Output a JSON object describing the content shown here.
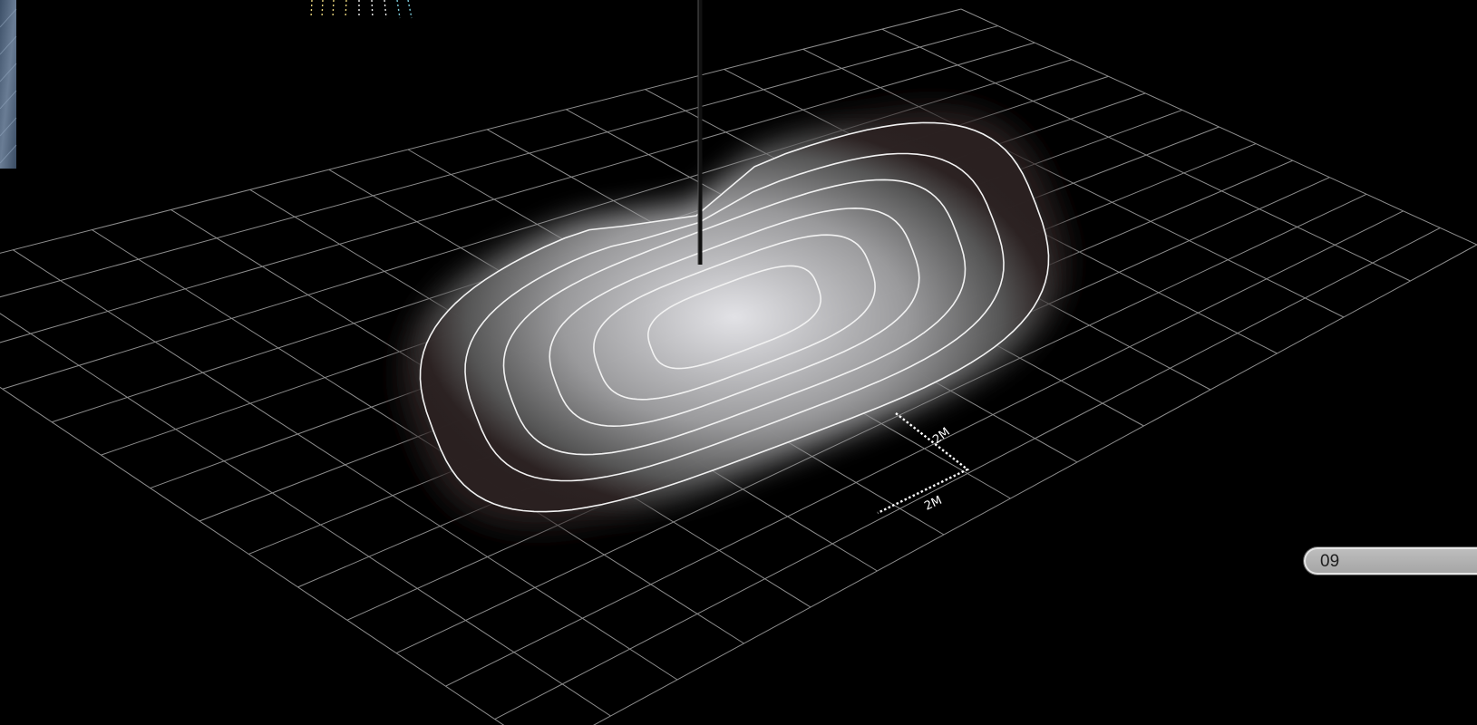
{
  "scene": {
    "dimension_width_label": "2M",
    "dimension_depth_label": "2M",
    "contour_levels": 6,
    "colors": {
      "background": "#000000",
      "grid": "#8c8c8c",
      "contour": "#f2f2f2",
      "pole": "#111111",
      "photo_strip": "#4a5f7a"
    }
  },
  "page": {
    "number": "09"
  }
}
